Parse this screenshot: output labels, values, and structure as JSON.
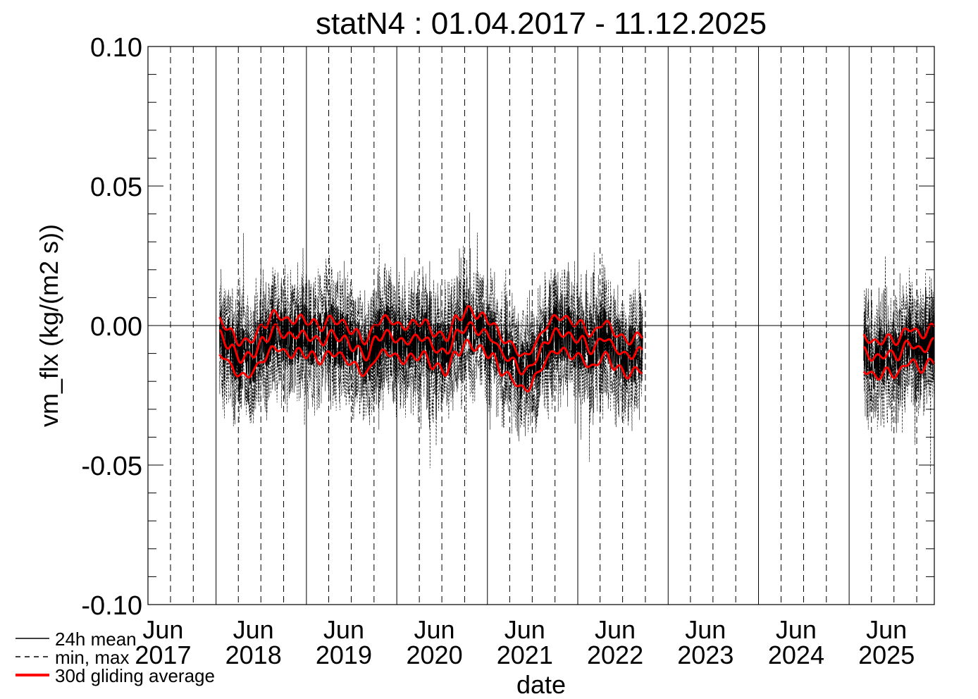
{
  "chart_data": {
    "type": "line",
    "title": "statN4 : 01.04.2017 - 11.12.2025",
    "xlabel": "date",
    "ylabel": "vm_flx (kg/(m2 s))",
    "ylim": [
      -0.1,
      0.1
    ],
    "xlim": [
      "2017-04-01",
      "2025-12-11"
    ],
    "y_ticks": [
      "0.10",
      "0.05",
      "0.00",
      "-0.05",
      "-0.10"
    ],
    "x_ticks": [
      {
        "top": "Jun",
        "bottom": "2017"
      },
      {
        "top": "Jun",
        "bottom": "2018"
      },
      {
        "top": "Jun",
        "bottom": "2019"
      },
      {
        "top": "Jun",
        "bottom": "2020"
      },
      {
        "top": "Jun",
        "bottom": "2021"
      },
      {
        "top": "Jun",
        "bottom": "2022"
      },
      {
        "top": "Jun",
        "bottom": "2023"
      },
      {
        "top": "Jun",
        "bottom": "2024"
      },
      {
        "top": "Jun",
        "bottom": "2025"
      }
    ],
    "zero_line": true,
    "grid": {
      "vertical_solid": "year start",
      "vertical_dashed": "quarter"
    },
    "legend_position": "bottom-left",
    "legend": [
      {
        "label": "24h mean",
        "style": "solid",
        "color": "#000000"
      },
      {
        "label": "min, max",
        "style": "dashed",
        "color": "#000000"
      },
      {
        "label": "30d gliding average",
        "style": "thick",
        "color": "#ff0000"
      }
    ],
    "data_segments": [
      {
        "start": "2018-01-15",
        "end": "2022-09-20"
      },
      {
        "start": "2025-03-01",
        "end": "2025-12-11"
      }
    ],
    "series": [
      {
        "name": "30d gliding average",
        "color": "#ff0000",
        "x": [
          "2018-01-15",
          "2018-03-01",
          "2018-04-15",
          "2018-06-01",
          "2018-07-15",
          "2018-09-01",
          "2018-10-15",
          "2018-12-01",
          "2019-01-15",
          "2019-03-01",
          "2019-04-15",
          "2019-06-01",
          "2019-07-15",
          "2019-09-01",
          "2019-10-15",
          "2019-12-01",
          "2020-01-15",
          "2020-03-01",
          "2020-04-15",
          "2020-06-01",
          "2020-07-15",
          "2020-09-01",
          "2020-10-15",
          "2020-12-01",
          "2021-01-15",
          "2021-03-01",
          "2021-04-15",
          "2021-06-01",
          "2021-07-15",
          "2021-09-01",
          "2021-10-15",
          "2021-12-01",
          "2022-01-15",
          "2022-03-01",
          "2022-04-15",
          "2022-06-01",
          "2022-07-15",
          "2022-09-20"
        ],
        "y": [
          -0.003,
          -0.008,
          -0.012,
          -0.01,
          -0.005,
          -0.001,
          -0.004,
          -0.003,
          -0.004,
          -0.006,
          -0.003,
          -0.005,
          -0.008,
          -0.011,
          -0.004,
          -0.003,
          -0.006,
          -0.005,
          -0.004,
          -0.008,
          -0.01,
          -0.003,
          0.0,
          -0.002,
          -0.004,
          -0.01,
          -0.013,
          -0.017,
          -0.012,
          -0.005,
          -0.002,
          -0.004,
          -0.005,
          -0.009,
          -0.004,
          -0.008,
          -0.011,
          -0.009
        ]
      },
      {
        "name": "30d gliding average",
        "color": "#ff0000",
        "x": [
          "2025-03-01",
          "2025-04-15",
          "2025-06-01",
          "2025-07-15",
          "2025-09-01",
          "2025-10-15",
          "2025-12-11"
        ],
        "y": [
          -0.009,
          -0.012,
          -0.01,
          -0.011,
          -0.006,
          -0.009,
          -0.006
        ]
      }
    ]
  }
}
